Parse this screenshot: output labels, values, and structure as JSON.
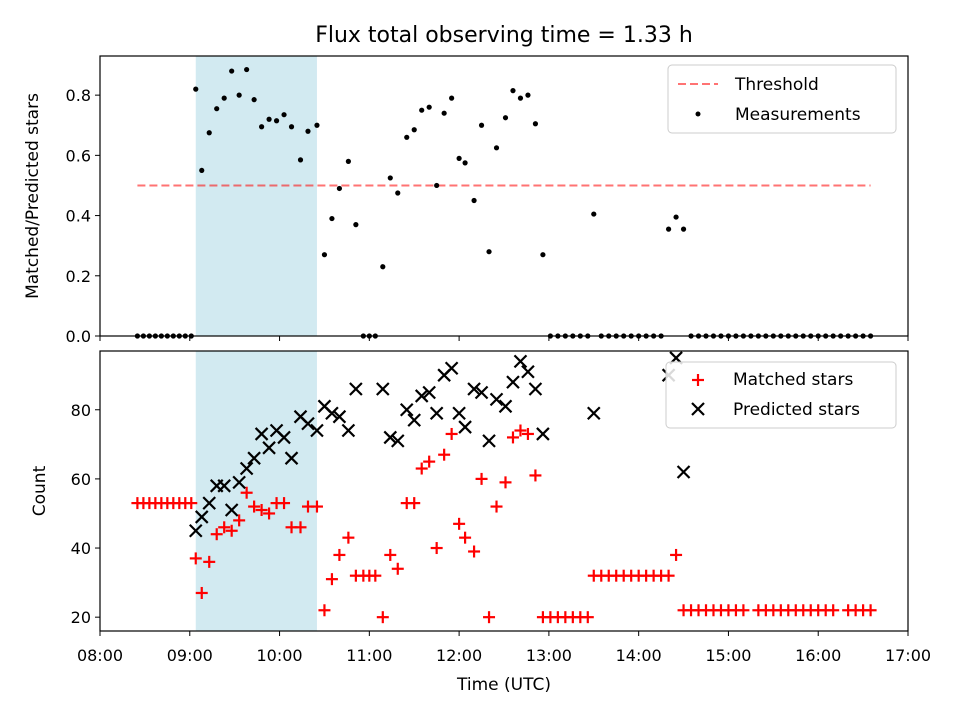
{
  "chart_data": [
    {
      "type": "scatter",
      "title": "Flux total observing time = 1.33 h",
      "ylabel": "Matched/Predicted stars",
      "xlabel": "",
      "xlim": [
        "08:00",
        "17:00"
      ],
      "ylim": [
        0,
        0.93
      ],
      "yticks": [
        "0.0",
        "0.2",
        "0.4",
        "0.6",
        "0.8"
      ],
      "highlight_span": {
        "start": "09:04",
        "end": "10:25",
        "color": "#add8e6"
      },
      "legend": {
        "position": "top-right",
        "entries": [
          "Threshold",
          "Measurements"
        ]
      },
      "threshold": {
        "name": "Threshold",
        "value": 0.5,
        "x_start": "08:25",
        "x_end": "16:35",
        "color": "#ff0000",
        "style": "dashed"
      },
      "series": [
        {
          "name": "Measurements",
          "color": "#000000",
          "marker": "dot",
          "points": [
            [
              "08:25",
              0
            ],
            [
              "08:29",
              0
            ],
            [
              "08:33",
              0
            ],
            [
              "08:37",
              0
            ],
            [
              "08:41",
              0
            ],
            [
              "08:45",
              0
            ],
            [
              "08:49",
              0
            ],
            [
              "08:53",
              0
            ],
            [
              "08:57",
              0
            ],
            [
              "09:01",
              0
            ],
            [
              "09:04",
              0.82
            ],
            [
              "09:08",
              0.55
            ],
            [
              "09:13",
              0.675
            ],
            [
              "09:18",
              0.755
            ],
            [
              "09:23",
              0.79
            ],
            [
              "09:28",
              0.88
            ],
            [
              "09:33",
              0.8
            ],
            [
              "09:38",
              0.885
            ],
            [
              "09:43",
              0.785
            ],
            [
              "09:48",
              0.695
            ],
            [
              "09:53",
              0.72
            ],
            [
              "09:58",
              0.715
            ],
            [
              "10:03",
              0.735
            ],
            [
              "10:08",
              0.695
            ],
            [
              "10:14",
              0.585
            ],
            [
              "10:19",
              0.68
            ],
            [
              "10:25",
              0.7
            ],
            [
              "10:30",
              0.27
            ],
            [
              "10:35",
              0.39
            ],
            [
              "10:40",
              0.49
            ],
            [
              "10:46",
              0.58
            ],
            [
              "10:51",
              0.37
            ],
            [
              "10:56",
              0
            ],
            [
              "11:00",
              0
            ],
            [
              "11:04",
              0
            ],
            [
              "11:09",
              0.23
            ],
            [
              "11:14",
              0.525
            ],
            [
              "11:19",
              0.475
            ],
            [
              "11:25",
              0.66
            ],
            [
              "11:30",
              0.685
            ],
            [
              "11:35",
              0.75
            ],
            [
              "11:40",
              0.76
            ],
            [
              "11:45",
              0.5
            ],
            [
              "11:50",
              0.74
            ],
            [
              "11:55",
              0.79
            ],
            [
              "12:00",
              0.59
            ],
            [
              "12:04",
              0.575
            ],
            [
              "12:10",
              0.45
            ],
            [
              "12:15",
              0.7
            ],
            [
              "12:20",
              0.28
            ],
            [
              "12:25",
              0.625
            ],
            [
              "12:31",
              0.725
            ],
            [
              "12:36",
              0.815
            ],
            [
              "12:41",
              0.79
            ],
            [
              "12:46",
              0.8
            ],
            [
              "12:51",
              0.705
            ],
            [
              "12:56",
              0.27
            ],
            [
              "13:01",
              0
            ],
            [
              "13:06",
              0
            ],
            [
              "13:11",
              0
            ],
            [
              "13:16",
              0
            ],
            [
              "13:21",
              0
            ],
            [
              "13:26",
              0
            ],
            [
              "13:30",
              0.405
            ],
            [
              "13:35",
              0
            ],
            [
              "13:40",
              0
            ],
            [
              "13:45",
              0
            ],
            [
              "13:50",
              0
            ],
            [
              "13:55",
              0
            ],
            [
              "14:00",
              0
            ],
            [
              "14:05",
              0
            ],
            [
              "14:10",
              0
            ],
            [
              "14:15",
              0
            ],
            [
              "14:20",
              0.355
            ],
            [
              "14:25",
              0.395
            ],
            [
              "14:30",
              0.355
            ],
            [
              "14:35",
              0
            ],
            [
              "14:40",
              0
            ],
            [
              "14:45",
              0
            ],
            [
              "14:50",
              0
            ],
            [
              "14:55",
              0
            ],
            [
              "15:00",
              0
            ],
            [
              "15:05",
              0
            ],
            [
              "15:10",
              0
            ],
            [
              "15:15",
              0
            ],
            [
              "15:20",
              0
            ],
            [
              "15:25",
              0
            ],
            [
              "15:30",
              0
            ],
            [
              "15:35",
              0
            ],
            [
              "15:40",
              0
            ],
            [
              "15:45",
              0
            ],
            [
              "15:50",
              0
            ],
            [
              "15:55",
              0
            ],
            [
              "16:00",
              0
            ],
            [
              "16:05",
              0
            ],
            [
              "16:10",
              0
            ],
            [
              "16:15",
              0
            ],
            [
              "16:20",
              0
            ],
            [
              "16:25",
              0
            ],
            [
              "16:30",
              0
            ],
            [
              "16:35",
              0
            ]
          ]
        }
      ]
    },
    {
      "type": "scatter",
      "title": "",
      "ylabel": "Count",
      "xlabel": "Time (UTC)",
      "xlim": [
        "08:00",
        "17:00"
      ],
      "ylim": [
        16,
        97
      ],
      "yticks": [
        "20",
        "40",
        "60",
        "80"
      ],
      "xticks": [
        "08:00",
        "09:00",
        "10:00",
        "11:00",
        "12:00",
        "13:00",
        "14:00",
        "15:00",
        "16:00",
        "17:00"
      ],
      "highlight_span": {
        "start": "09:04",
        "end": "10:25",
        "color": "#add8e6"
      },
      "legend": {
        "position": "top-right",
        "entries": [
          "Matched stars",
          "Predicted stars"
        ]
      },
      "series": [
        {
          "name": "Matched stars",
          "color": "#ff0000",
          "marker": "plus",
          "points": [
            [
              "08:25",
              53
            ],
            [
              "08:29",
              53
            ],
            [
              "08:33",
              53
            ],
            [
              "08:37",
              53
            ],
            [
              "08:41",
              53
            ],
            [
              "08:45",
              53
            ],
            [
              "08:49",
              53
            ],
            [
              "08:53",
              53
            ],
            [
              "08:57",
              53
            ],
            [
              "09:01",
              53
            ],
            [
              "09:04",
              37
            ],
            [
              "09:08",
              27
            ],
            [
              "09:13",
              36
            ],
            [
              "09:18",
              44
            ],
            [
              "09:23",
              46
            ],
            [
              "09:28",
              45
            ],
            [
              "09:33",
              48
            ],
            [
              "09:38",
              56
            ],
            [
              "09:43",
              52
            ],
            [
              "09:48",
              51
            ],
            [
              "09:53",
              50
            ],
            [
              "09:58",
              53
            ],
            [
              "10:03",
              53
            ],
            [
              "10:08",
              46
            ],
            [
              "10:14",
              46
            ],
            [
              "10:19",
              52
            ],
            [
              "10:25",
              52
            ],
            [
              "10:30",
              22
            ],
            [
              "10:35",
              31
            ],
            [
              "10:40",
              38
            ],
            [
              "10:46",
              43
            ],
            [
              "10:51",
              32
            ],
            [
              "10:56",
              32
            ],
            [
              "11:00",
              32
            ],
            [
              "11:04",
              32
            ],
            [
              "11:09",
              20
            ],
            [
              "11:14",
              38
            ],
            [
              "11:19",
              34
            ],
            [
              "11:25",
              53
            ],
            [
              "11:30",
              53
            ],
            [
              "11:35",
              63
            ],
            [
              "11:40",
              65
            ],
            [
              "11:45",
              40
            ],
            [
              "11:50",
              67
            ],
            [
              "11:55",
              73
            ],
            [
              "12:00",
              47
            ],
            [
              "12:04",
              43
            ],
            [
              "12:10",
              39
            ],
            [
              "12:15",
              60
            ],
            [
              "12:20",
              20
            ],
            [
              "12:25",
              52
            ],
            [
              "12:31",
              59
            ],
            [
              "12:36",
              72
            ],
            [
              "12:41",
              74
            ],
            [
              "12:46",
              73
            ],
            [
              "12:51",
              61
            ],
            [
              "12:56",
              20
            ],
            [
              "13:01",
              20
            ],
            [
              "13:06",
              20
            ],
            [
              "13:11",
              20
            ],
            [
              "13:16",
              20
            ],
            [
              "13:21",
              20
            ],
            [
              "13:26",
              20
            ],
            [
              "13:30",
              32
            ],
            [
              "13:35",
              32
            ],
            [
              "13:40",
              32
            ],
            [
              "13:45",
              32
            ],
            [
              "13:50",
              32
            ],
            [
              "13:55",
              32
            ],
            [
              "14:00",
              32
            ],
            [
              "14:05",
              32
            ],
            [
              "14:10",
              32
            ],
            [
              "14:15",
              32
            ],
            [
              "14:20",
              32
            ],
            [
              "14:25",
              38
            ],
            [
              "14:30",
              22
            ],
            [
              "14:35",
              22
            ],
            [
              "14:40",
              22
            ],
            [
              "14:45",
              22
            ],
            [
              "14:50",
              22
            ],
            [
              "14:55",
              22
            ],
            [
              "15:00",
              22
            ],
            [
              "15:05",
              22
            ],
            [
              "15:10",
              22
            ],
            [
              "15:20",
              22
            ],
            [
              "15:25",
              22
            ],
            [
              "15:30",
              22
            ],
            [
              "15:35",
              22
            ],
            [
              "15:40",
              22
            ],
            [
              "15:45",
              22
            ],
            [
              "15:50",
              22
            ],
            [
              "15:55",
              22
            ],
            [
              "16:00",
              22
            ],
            [
              "16:05",
              22
            ],
            [
              "16:10",
              22
            ],
            [
              "16:20",
              22
            ],
            [
              "16:25",
              22
            ],
            [
              "16:30",
              22
            ],
            [
              "16:35",
              22
            ]
          ]
        },
        {
          "name": "Predicted stars",
          "color": "#000000",
          "marker": "x",
          "points": [
            [
              "09:04",
              45
            ],
            [
              "09:08",
              49
            ],
            [
              "09:13",
              53
            ],
            [
              "09:18",
              58
            ],
            [
              "09:23",
              58
            ],
            [
              "09:28",
              51
            ],
            [
              "09:33",
              59
            ],
            [
              "09:38",
              63
            ],
            [
              "09:43",
              66
            ],
            [
              "09:48",
              73
            ],
            [
              "09:53",
              69
            ],
            [
              "09:58",
              74
            ],
            [
              "10:03",
              72
            ],
            [
              "10:08",
              66
            ],
            [
              "10:14",
              78
            ],
            [
              "10:19",
              76
            ],
            [
              "10:25",
              74
            ],
            [
              "10:30",
              81
            ],
            [
              "10:35",
              79
            ],
            [
              "10:40",
              78
            ],
            [
              "10:46",
              74
            ],
            [
              "10:51",
              86
            ],
            [
              "11:09",
              86
            ],
            [
              "11:14",
              72
            ],
            [
              "11:19",
              71
            ],
            [
              "11:25",
              80
            ],
            [
              "11:30",
              77
            ],
            [
              "11:35",
              84
            ],
            [
              "11:40",
              85
            ],
            [
              "11:45",
              79
            ],
            [
              "11:50",
              90
            ],
            [
              "11:55",
              92
            ],
            [
              "12:00",
              79
            ],
            [
              "12:04",
              75
            ],
            [
              "12:10",
              86
            ],
            [
              "12:15",
              85
            ],
            [
              "12:20",
              71
            ],
            [
              "12:25",
              83
            ],
            [
              "12:31",
              81
            ],
            [
              "12:36",
              88
            ],
            [
              "12:41",
              94
            ],
            [
              "12:46",
              91
            ],
            [
              "12:51",
              86
            ],
            [
              "12:56",
              73
            ],
            [
              "13:30",
              79
            ],
            [
              "14:20",
              90
            ],
            [
              "14:25",
              95
            ],
            [
              "14:30",
              62
            ]
          ]
        }
      ]
    }
  ]
}
